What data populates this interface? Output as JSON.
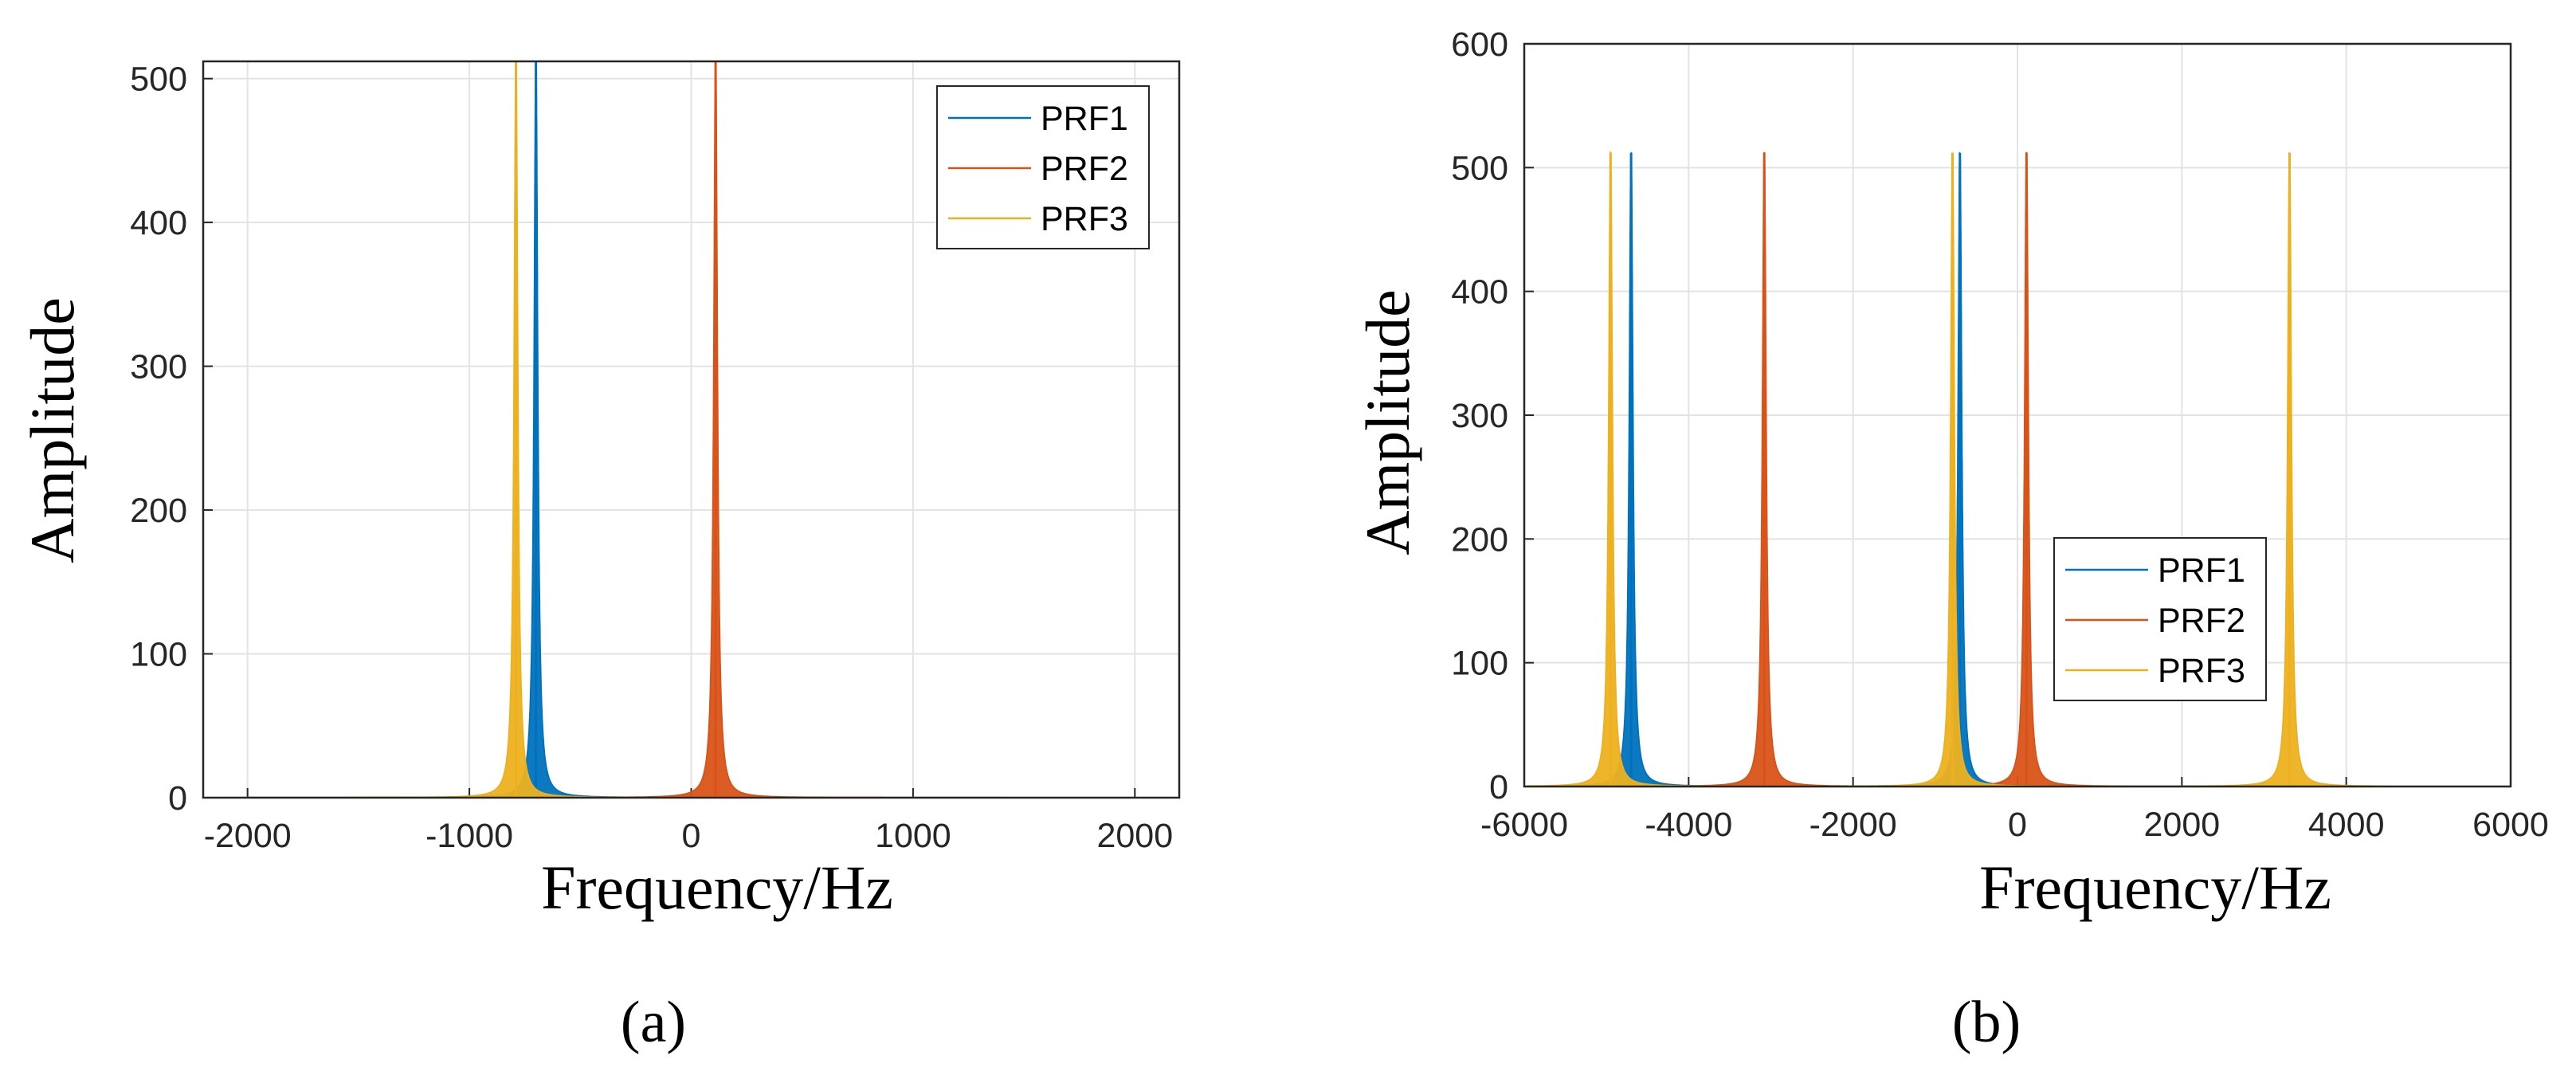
{
  "chart_data": [
    {
      "type": "line",
      "panel_label": "(a)",
      "xlabel": "Frequency/Hz",
      "ylabel": "Amplitude",
      "xlim": [
        -2200,
        2200
      ],
      "ylim": [
        0,
        512
      ],
      "xticks": [
        "-2000",
        "-1000",
        "0",
        "1000",
        "2000"
      ],
      "yticks": [
        "0",
        "100",
        "200",
        "300",
        "400",
        "500"
      ],
      "grid": true,
      "legend_position": "top-right",
      "series": [
        {
          "name": "PRF1",
          "color": "#0072BD",
          "peaks": [
            {
              "x": -700,
              "y": 512
            }
          ]
        },
        {
          "name": "PRF2",
          "color": "#D95319",
          "peaks": [
            {
              "x": 110,
              "y": 512
            }
          ]
        },
        {
          "name": "PRF3",
          "color": "#EDB120",
          "peaks": [
            {
              "x": -790,
              "y": 512
            }
          ]
        }
      ]
    },
    {
      "type": "line",
      "panel_label": "(b)",
      "xlabel": "Frequency/Hz",
      "ylabel": "Amplitude",
      "xlim": [
        -6000,
        6000
      ],
      "ylim": [
        0,
        600
      ],
      "xticks": [
        "-6000",
        "-4000",
        "-2000",
        "0",
        "2000",
        "4000",
        "6000"
      ],
      "yticks": [
        "0",
        "100",
        "200",
        "300",
        "400",
        "500",
        "600"
      ],
      "grid": true,
      "legend_position": "bottom-center",
      "series": [
        {
          "name": "PRF1",
          "color": "#0072BD",
          "peaks": [
            {
              "x": -4700,
              "y": 512
            },
            {
              "x": -700,
              "y": 512
            }
          ]
        },
        {
          "name": "PRF2",
          "color": "#D95319",
          "peaks": [
            {
              "x": -3080,
              "y": 512
            },
            {
              "x": 110,
              "y": 512
            }
          ]
        },
        {
          "name": "PRF3",
          "color": "#EDB120",
          "peaks": [
            {
              "x": -4950,
              "y": 512
            },
            {
              "x": -790,
              "y": 512
            },
            {
              "x": 3310,
              "y": 512
            }
          ]
        }
      ]
    }
  ]
}
